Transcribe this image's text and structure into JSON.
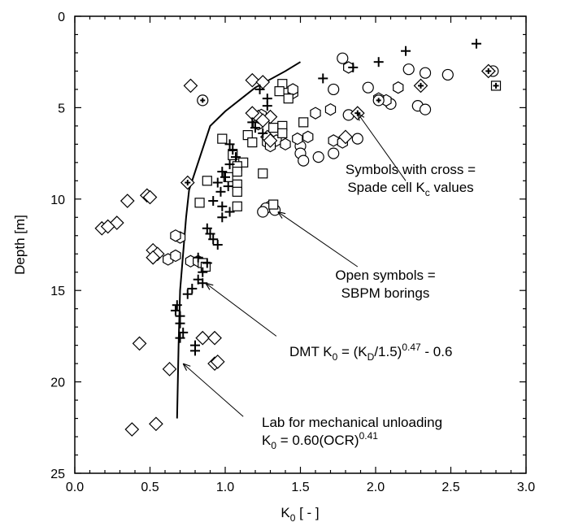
{
  "chart_data": {
    "type": "scatter",
    "title": "",
    "xlabel": {
      "main": "K",
      "sub": "0",
      "suffix": " [ - ]"
    },
    "ylabel": "Depth [m]",
    "xlim": [
      0,
      3
    ],
    "ylim": [
      0,
      25
    ],
    "y_inverted": true,
    "x_axis_position": "top-ticks-bottom-labels",
    "grid": false,
    "x_ticks": [
      "0.0",
      "0.5",
      "1.0",
      "1.5",
      "2.0",
      "2.5",
      "3.0"
    ],
    "y_ticks": [
      "0",
      "5",
      "10",
      "15",
      "20",
      "25"
    ],
    "markers": {
      "circle": [
        [
          1.78,
          2.3
        ],
        [
          1.72,
          4.0
        ],
        [
          2.22,
          2.9
        ],
        [
          2.33,
          3.1
        ],
        [
          2.48,
          3.2
        ],
        [
          1.95,
          3.9
        ],
        [
          2.1,
          4.8
        ],
        [
          2.28,
          4.9
        ],
        [
          2.33,
          5.1
        ],
        [
          1.82,
          5.4
        ],
        [
          1.88,
          6.7
        ],
        [
          1.72,
          7.5
        ],
        [
          1.5,
          7.1
        ],
        [
          1.62,
          7.7
        ],
        [
          1.5,
          7.5
        ],
        [
          1.52,
          7.9
        ],
        [
          1.3,
          10.4
        ],
        [
          1.27,
          10.5
        ],
        [
          1.33,
          10.6
        ],
        [
          1.25,
          10.7
        ]
      ],
      "hexagon": [
        [
          1.45,
          4.2
        ],
        [
          1.45,
          4.0
        ],
        [
          1.6,
          5.3
        ],
        [
          1.7,
          5.1
        ],
        [
          2.07,
          4.6
        ],
        [
          2.02,
          4.5
        ],
        [
          1.24,
          5.4
        ],
        [
          1.28,
          6.9
        ],
        [
          1.34,
          6.8
        ],
        [
          1.3,
          7.1
        ],
        [
          1.4,
          7.0
        ],
        [
          1.55,
          6.6
        ],
        [
          1.48,
          6.7
        ],
        [
          1.72,
          6.8
        ],
        [
          1.78,
          6.9
        ],
        [
          1.22,
          5.9
        ],
        [
          0.7,
          12.1
        ],
        [
          0.67,
          12.0
        ],
        [
          0.62,
          13.3
        ],
        [
          0.67,
          13.1
        ],
        [
          0.77,
          13.4
        ],
        [
          0.82,
          13.4
        ],
        [
          2.15,
          3.9
        ],
        [
          1.82,
          2.8
        ]
      ],
      "square": [
        [
          1.38,
          3.7
        ],
        [
          1.36,
          4.1
        ],
        [
          1.42,
          4.5
        ],
        [
          1.38,
          6.0
        ],
        [
          1.32,
          6.1
        ],
        [
          1.52,
          5.8
        ],
        [
          1.38,
          6.4
        ],
        [
          1.15,
          6.5
        ],
        [
          1.18,
          6.9
        ],
        [
          0.98,
          6.7
        ],
        [
          1.05,
          7.6
        ],
        [
          1.12,
          8.0
        ],
        [
          1.08,
          8.2
        ],
        [
          1.02,
          8.8
        ],
        [
          1.08,
          8.5
        ],
        [
          1.08,
          9.2
        ],
        [
          0.88,
          9.0
        ],
        [
          1.08,
          9.6
        ],
        [
          1.25,
          8.6
        ],
        [
          1.08,
          10.4
        ],
        [
          0.83,
          10.2
        ],
        [
          1.32,
          10.3
        ],
        [
          0.85,
          13.5
        ],
        [
          0.87,
          13.7
        ]
      ],
      "diamond": [
        [
          1.18,
          3.5
        ],
        [
          1.25,
          3.6
        ],
        [
          0.77,
          3.8
        ],
        [
          1.3,
          5.5
        ],
        [
          1.22,
          5.5
        ],
        [
          1.18,
          5.3
        ],
        [
          1.25,
          5.7
        ],
        [
          1.28,
          6.6
        ],
        [
          1.3,
          6.8
        ],
        [
          1.8,
          6.6
        ],
        [
          0.35,
          10.1
        ],
        [
          0.28,
          11.3
        ],
        [
          0.48,
          9.8
        ],
        [
          0.5,
          9.9
        ],
        [
          0.18,
          11.6
        ],
        [
          0.22,
          11.5
        ],
        [
          0.52,
          12.8
        ],
        [
          0.55,
          13.0
        ],
        [
          0.52,
          13.2
        ],
        [
          0.85,
          17.6
        ],
        [
          0.93,
          17.6
        ],
        [
          0.93,
          19.0
        ],
        [
          0.95,
          18.9
        ],
        [
          0.43,
          17.9
        ],
        [
          0.63,
          19.3
        ],
        [
          0.38,
          22.6
        ],
        [
          0.54,
          22.3
        ]
      ],
      "plus": [
        [
          2.67,
          1.5
        ],
        [
          2.2,
          1.9
        ],
        [
          2.02,
          2.5
        ],
        [
          1.85,
          2.8
        ],
        [
          1.65,
          3.4
        ],
        [
          1.23,
          4.0
        ],
        [
          1.28,
          4.5
        ],
        [
          1.28,
          4.9
        ],
        [
          1.18,
          5.8
        ],
        [
          1.2,
          6.1
        ],
        [
          1.25,
          6.4
        ],
        [
          1.03,
          7.0
        ],
        [
          1.05,
          7.3
        ],
        [
          1.07,
          7.7
        ],
        [
          1.03,
          8.1
        ],
        [
          0.98,
          8.5
        ],
        [
          1.0,
          8.8
        ],
        [
          0.95,
          9.1
        ],
        [
          1.02,
          9.3
        ],
        [
          0.97,
          9.6
        ],
        [
          0.92,
          10.1
        ],
        [
          0.98,
          10.4
        ],
        [
          1.03,
          10.7
        ],
        [
          0.98,
          11.0
        ],
        [
          0.88,
          11.6
        ],
        [
          0.9,
          11.9
        ],
        [
          0.92,
          12.2
        ],
        [
          0.95,
          12.5
        ],
        [
          0.82,
          13.2
        ],
        [
          0.88,
          13.5
        ],
        [
          0.85,
          14.0
        ],
        [
          0.82,
          14.4
        ],
        [
          0.85,
          14.6
        ],
        [
          0.78,
          14.9
        ],
        [
          0.75,
          15.2
        ],
        [
          0.68,
          15.8
        ],
        [
          0.67,
          16.1
        ],
        [
          0.7,
          16.4
        ],
        [
          0.7,
          16.8
        ],
        [
          0.72,
          17.3
        ],
        [
          0.7,
          17.6
        ],
        [
          0.8,
          18.0
        ],
        [
          0.8,
          18.3
        ]
      ],
      "circle_cross": [
        [
          0.85,
          4.6
        ],
        [
          2.78,
          3.0
        ],
        [
          2.02,
          4.6
        ]
      ],
      "diamond_cross": [
        [
          2.3,
          3.8
        ],
        [
          2.75,
          3.0
        ],
        [
          1.88,
          5.3
        ],
        [
          0.75,
          9.1
        ]
      ],
      "square_cross": [
        [
          2.8,
          3.8
        ]
      ]
    },
    "curve": {
      "name": "Lab for mechanical unloading",
      "x": [
        0.68,
        0.69,
        0.7,
        0.72,
        0.74,
        0.76,
        0.8,
        0.9,
        1.0,
        1.2,
        1.4,
        1.5
      ],
      "y": [
        22,
        18,
        15,
        13,
        11,
        9.5,
        8.5,
        6,
        5.2,
        3.9,
        3.0,
        2.5
      ]
    },
    "annotations": [
      {
        "id": "cross",
        "parts": [
          {
            "line": 1,
            "text": "Symbols with cross ="
          },
          {
            "line": 2,
            "text": "Spade cell K"
          },
          {
            "line": 2,
            "text": "c",
            "style": "sub"
          },
          {
            "line": 2,
            "text": " values"
          }
        ],
        "arrow_to": [
          1.88,
          5.3
        ],
        "arrow_from": [
          2.2,
          9.0
        ]
      },
      {
        "id": "open",
        "parts": [
          {
            "line": 1,
            "text": "Open symbols ="
          },
          {
            "line": 2,
            "text": "SBPM borings"
          }
        ],
        "arrow_to": [
          1.35,
          10.7
        ],
        "arrow_from": [
          1.88,
          13.7
        ]
      },
      {
        "id": "dmt",
        "parts": [
          {
            "line": 1,
            "text": "DMT K"
          },
          {
            "line": 1,
            "text": "0",
            "style": "sub"
          },
          {
            "line": 1,
            "text": " = (K"
          },
          {
            "line": 1,
            "text": "D",
            "style": "sub"
          },
          {
            "line": 1,
            "text": "/1.5)"
          },
          {
            "line": 1,
            "text": "0.47",
            "style": "sup"
          },
          {
            "line": 1,
            "text": " - 0.6"
          }
        ],
        "arrow_to": [
          0.87,
          14.6
        ],
        "arrow_from": [
          1.34,
          17.5
        ]
      },
      {
        "id": "lab",
        "parts": [
          {
            "line": 1,
            "text": "Lab for mechanical unloading"
          },
          {
            "line": 2,
            "text": "K"
          },
          {
            "line": 2,
            "text": "0",
            "style": "sub"
          },
          {
            "line": 2,
            "text": " = 0.60(OCR)"
          },
          {
            "line": 2,
            "text": "0.41",
            "style": "sup"
          }
        ],
        "arrow_to": [
          0.72,
          19.0
        ],
        "arrow_from": [
          1.12,
          21.9
        ]
      }
    ]
  }
}
